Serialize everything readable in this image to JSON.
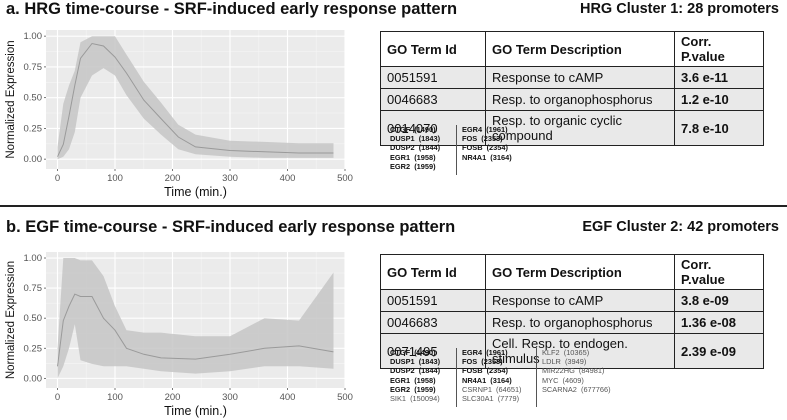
{
  "panels": [
    {
      "title": "a. HRG time-course - SRF-induced early response pattern",
      "cluster_title": "HRG Cluster 1: 28 promoters",
      "table": {
        "headers": [
          "GO Term Id",
          "GO Term Description",
          "Corr. P.value"
        ],
        "rows": [
          [
            "0051591",
            "Response to cAMP",
            "3.6 e-11"
          ],
          [
            "0046683",
            "Resp. to organophosphorus",
            "1.2 e-10"
          ],
          [
            "0014070",
            "Resp. to organic cyclic compound",
            "7.8 e-10"
          ]
        ]
      },
      "gene_columns": [
        [
          {
            "name": "CTGF",
            "id": "(1490)",
            "bold": true
          },
          {
            "name": "DUSP1",
            "id": "(1843)",
            "bold": true
          },
          {
            "name": "DUSP2",
            "id": "(1844)",
            "bold": true
          },
          {
            "name": "EGR1",
            "id": "(1958)",
            "bold": true
          },
          {
            "name": "EGR2",
            "id": "(1959)",
            "bold": true
          }
        ],
        [
          {
            "name": "EGR4",
            "id": "(1961)",
            "bold": true
          },
          {
            "name": "FOS",
            "id": "(2353)",
            "bold": true
          },
          {
            "name": "FOSB",
            "id": "(2354)",
            "bold": true
          },
          {
            "name": "NR4A1",
            "id": "(3164)",
            "bold": true
          }
        ]
      ]
    },
    {
      "title": "b. EGF time-course - SRF-induced early response pattern",
      "cluster_title": "EGF Cluster 2: 42 promoters",
      "table": {
        "headers": [
          "GO Term Id",
          "GO Term Description",
          "Corr. P.value"
        ],
        "rows": [
          [
            "0051591",
            "Response to cAMP",
            "3.8 e-09"
          ],
          [
            "0046683",
            "Resp. to organophosphorus",
            "1.36 e-08"
          ],
          [
            "0071495",
            "Cell. Resp. to endogen. stimulus",
            "2.39 e-09"
          ]
        ]
      },
      "gene_columns": [
        [
          {
            "name": "CTGF",
            "id": "(1490)",
            "bold": true
          },
          {
            "name": "DUSP1",
            "id": "(1843)",
            "bold": true
          },
          {
            "name": "DUSP2",
            "id": "(1844)",
            "bold": true
          },
          {
            "name": "EGR1",
            "id": "(1958)",
            "bold": true
          },
          {
            "name": "EGR2",
            "id": "(1959)",
            "bold": true
          },
          {
            "name": "SIK1",
            "id": "(150094)",
            "bold": false
          }
        ],
        [
          {
            "name": "EGR4",
            "id": "(1961)",
            "bold": true
          },
          {
            "name": "FOS",
            "id": "(2353)",
            "bold": true
          },
          {
            "name": "FOSB",
            "id": "(2354)",
            "bold": true
          },
          {
            "name": "NR4A1",
            "id": "(3164)",
            "bold": true
          },
          {
            "name": "CSRNP1",
            "id": "(64651)",
            "bold": false
          },
          {
            "name": "SLC30A1",
            "id": "(7779)",
            "bold": false
          }
        ],
        [
          {
            "name": "KLF2",
            "id": "(10365)",
            "bold": false
          },
          {
            "name": "LDLR",
            "id": "(3949)",
            "bold": false
          },
          {
            "name": "MIR22HG",
            "id": "(84981)",
            "bold": false
          },
          {
            "name": "MYC",
            "id": "(4609)",
            "bold": false
          },
          {
            "name": "SCARNA2",
            "id": "(677766)",
            "bold": false
          }
        ]
      ]
    }
  ],
  "chart_data": [
    {
      "type": "area",
      "xlabel": "Time (min.)",
      "ylabel": "Normalized Expression",
      "xlim": [
        -20,
        500
      ],
      "ylim": [
        -0.08,
        1.05
      ],
      "xticks": [
        0,
        100,
        200,
        300,
        400,
        500
      ],
      "yticks": [
        0.0,
        0.25,
        0.5,
        0.75,
        1.0
      ],
      "grid": true,
      "colors": {
        "background": "#ebebeb",
        "ribbon": "#c6c6c6",
        "line": "#9a9a9a",
        "grid": "#ffffff"
      },
      "x": [
        0,
        10,
        20,
        30,
        40,
        60,
        80,
        100,
        120,
        150,
        180,
        210,
        240,
        300,
        360,
        420,
        480
      ],
      "mean": [
        0.02,
        0.12,
        0.35,
        0.6,
        0.82,
        0.94,
        0.92,
        0.83,
        0.7,
        0.48,
        0.33,
        0.18,
        0.1,
        0.07,
        0.06,
        0.05,
        0.05
      ],
      "lower": [
        0.0,
        0.02,
        0.08,
        0.22,
        0.5,
        0.68,
        0.74,
        0.68,
        0.52,
        0.33,
        0.2,
        0.08,
        0.04,
        0.02,
        0.01,
        0.01,
        0.01
      ],
      "upper": [
        0.1,
        0.45,
        0.6,
        0.72,
        0.95,
        1.0,
        1.0,
        1.0,
        0.85,
        0.63,
        0.46,
        0.28,
        0.2,
        0.15,
        0.14,
        0.13,
        0.13
      ]
    },
    {
      "type": "area",
      "xlabel": "Time (min.)",
      "ylabel": "Normalized Expression",
      "xlim": [
        -20,
        500
      ],
      "ylim": [
        -0.08,
        1.05
      ],
      "xticks": [
        0,
        100,
        200,
        300,
        400,
        500
      ],
      "yticks": [
        0.0,
        0.25,
        0.5,
        0.75,
        1.0
      ],
      "grid": true,
      "colors": {
        "background": "#ebebeb",
        "ribbon": "#c6c6c6",
        "line": "#9a9a9a",
        "grid": "#ffffff"
      },
      "x": [
        0,
        10,
        20,
        30,
        40,
        60,
        80,
        100,
        120,
        150,
        180,
        240,
        300,
        360,
        420,
        480
      ],
      "mean": [
        0.1,
        0.48,
        0.6,
        0.7,
        0.68,
        0.68,
        0.5,
        0.4,
        0.25,
        0.2,
        0.17,
        0.16,
        0.2,
        0.25,
        0.27,
        0.22
      ],
      "lower": [
        0.0,
        0.1,
        0.25,
        0.45,
        0.15,
        0.12,
        0.1,
        0.1,
        0.1,
        0.08,
        0.06,
        0.04,
        0.06,
        0.1,
        0.1,
        0.08
      ],
      "upper": [
        0.25,
        1.0,
        1.0,
        1.0,
        0.98,
        0.98,
        0.85,
        0.6,
        0.4,
        0.38,
        0.38,
        0.35,
        0.35,
        0.5,
        0.48,
        0.88
      ]
    }
  ]
}
